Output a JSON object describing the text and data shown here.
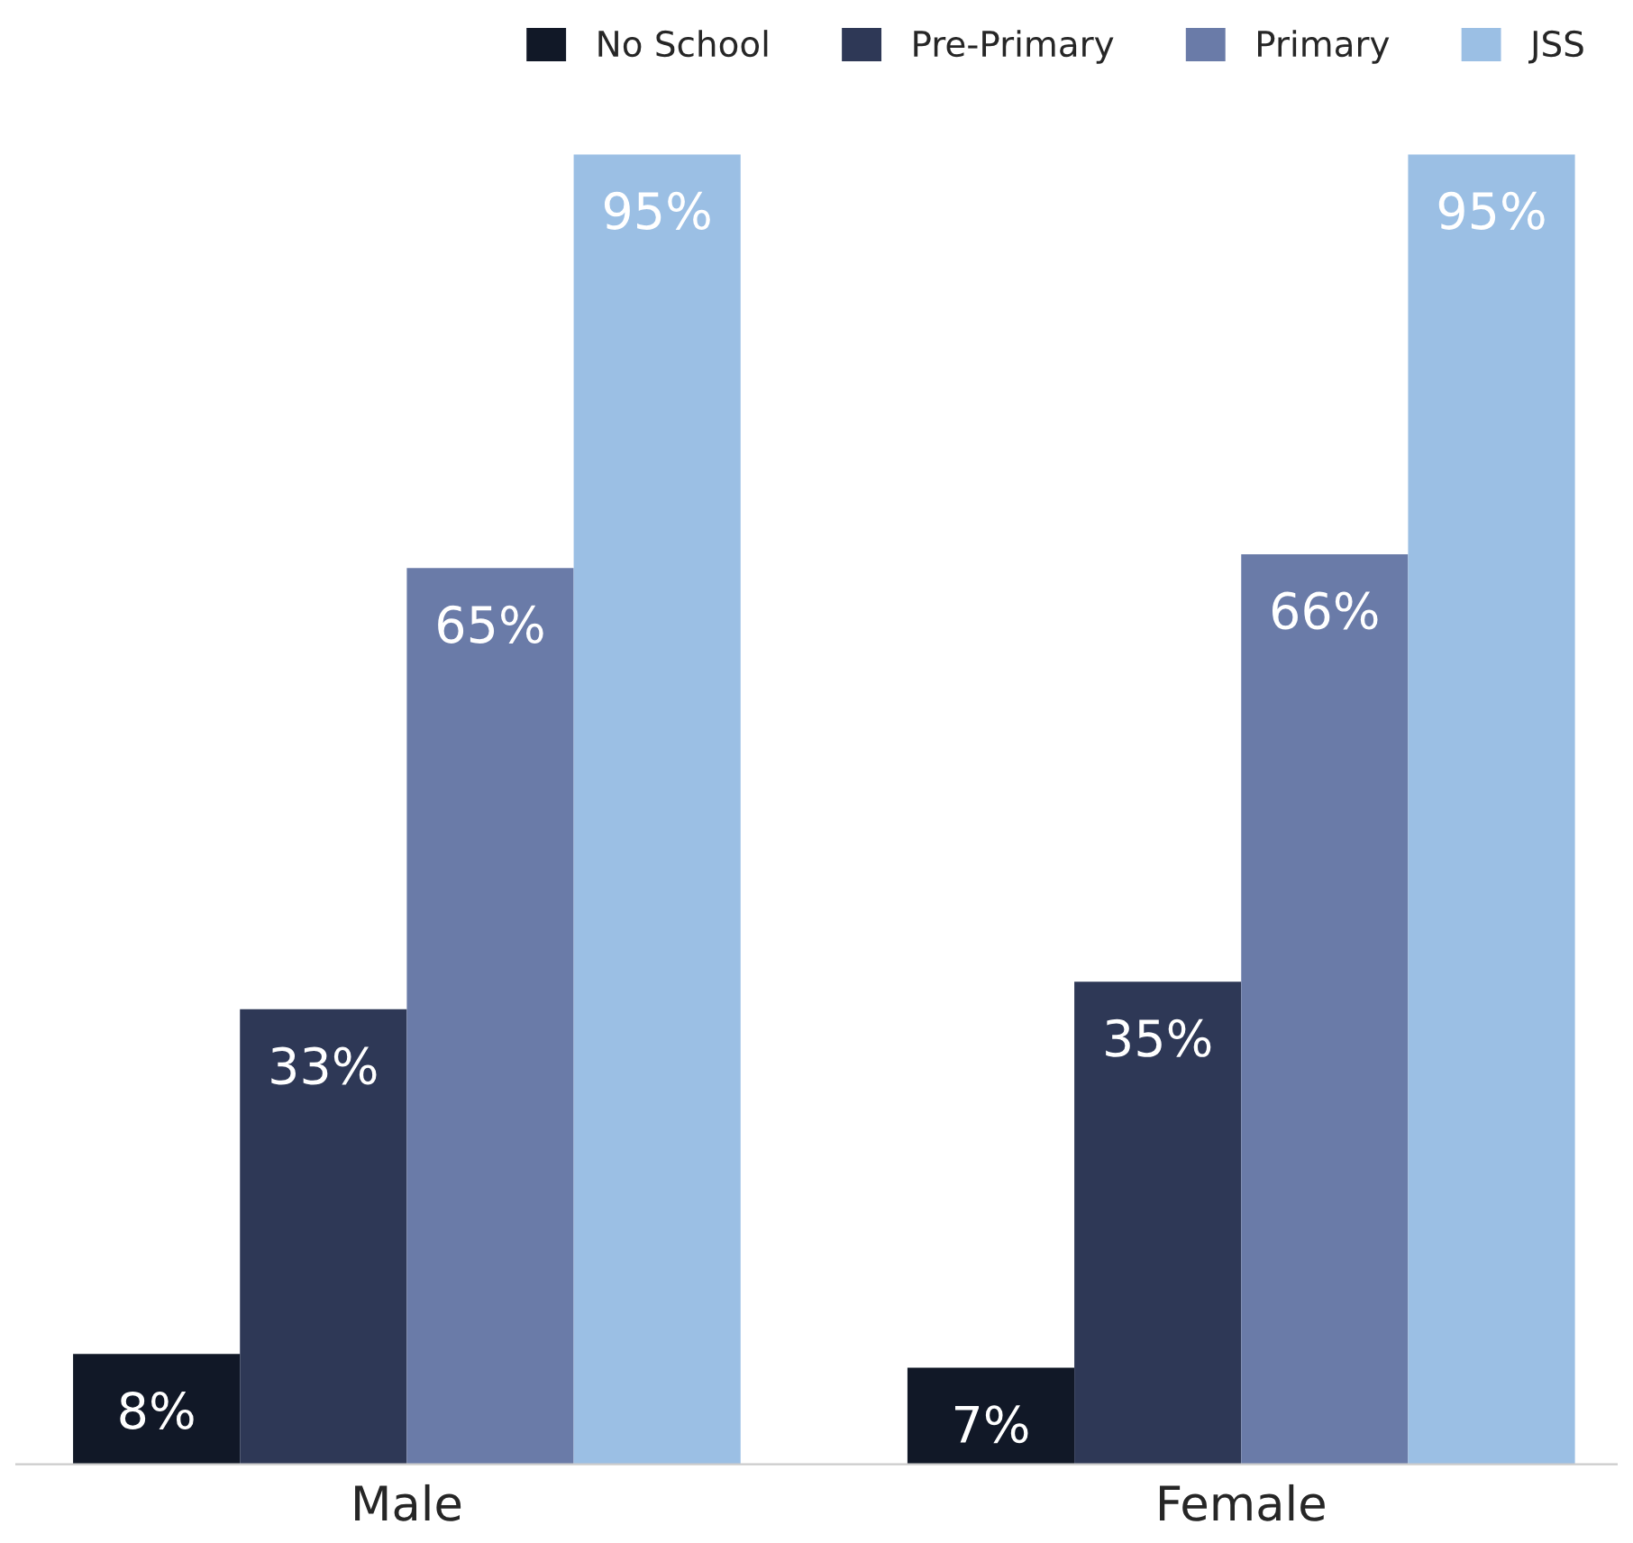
{
  "chart_data": {
    "type": "bar",
    "categories": [
      "Male",
      "Female"
    ],
    "series": [
      {
        "name": "No School",
        "color": "#111827",
        "values": [
          8,
          7
        ],
        "value_labels": [
          "8%",
          "7%"
        ]
      },
      {
        "name": "Pre-Primary",
        "color": "#2e3856",
        "values": [
          33,
          35
        ],
        "value_labels": [
          "33%",
          "35%"
        ]
      },
      {
        "name": "Primary",
        "color": "#6a7ba8",
        "values": [
          65,
          66
        ],
        "value_labels": [
          "65%",
          "66%"
        ]
      },
      {
        "name": "JSS",
        "color": "#9bbfe4",
        "values": [
          95,
          95
        ],
        "value_labels": [
          "95%",
          "95%"
        ]
      }
    ],
    "legend": "top right",
    "grid": false
  }
}
